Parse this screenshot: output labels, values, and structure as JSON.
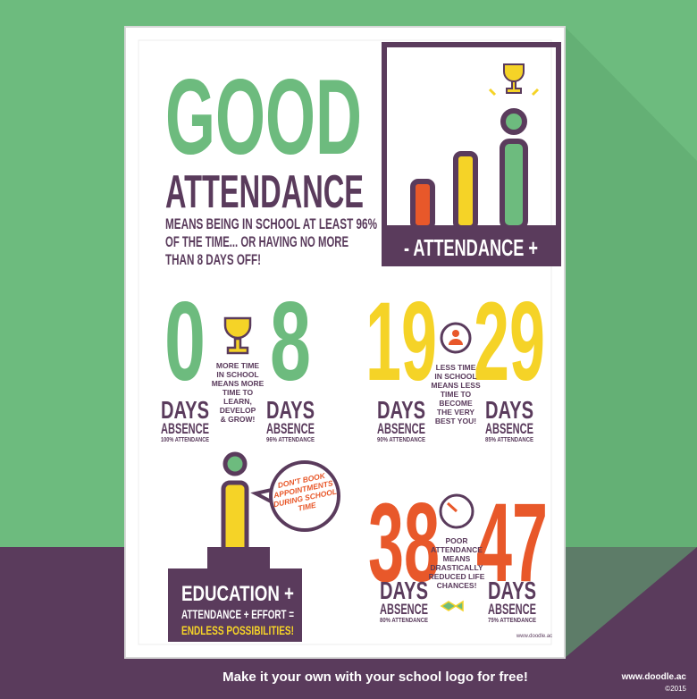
{
  "poster": {
    "headline": "GOOD",
    "subheadline": "ATTENDANCE",
    "description": [
      "MEANS BEING IN SCHOOL AT LEAST 96%",
      "OF THE TIME... OR HAVING NO MORE",
      "THAN 8 DAYS OFF!"
    ],
    "badge": "- ATTENDANCE +",
    "stats": [
      {
        "number": 0,
        "days": "DAYS",
        "absence": "ABSENCE",
        "attendance": "100% ATTENDANCE"
      },
      {
        "number": 8,
        "days": "DAYS",
        "absence": "ABSENCE",
        "attendance": "96% ATTENDANCE"
      },
      {
        "number": 19,
        "days": "DAYS",
        "absence": "ABSENCE",
        "attendance": "90% ATTENDANCE"
      },
      {
        "number": 29,
        "days": "DAYS",
        "absence": "ABSENCE",
        "attendance": "85% ATTENDANCE"
      },
      {
        "number": 38,
        "days": "DAYS",
        "absence": "ABSENCE",
        "attendance": "80% ATTENDANCE"
      },
      {
        "number": 47,
        "days": "DAYS",
        "absence": "ABSENCE",
        "attendance": "75% ATTENDANCE"
      }
    ],
    "notes": [
      [
        "MORE TIME",
        "IN SCHOOL",
        "MEANS MORE",
        "TIME TO",
        "LEARN,",
        "DEVELOP",
        "& GROW!"
      ],
      [
        "LESS TIME",
        "IN SCHOOL",
        "MEANS LESS",
        "TIME TO",
        "BECOME",
        "THE VERY",
        "BEST YOU!"
      ],
      [
        "POOR",
        "ATTENDANCE",
        "MEANS",
        "DRASTICALLY",
        "REDUCED LIFE",
        "CHANCES!"
      ]
    ],
    "speech": [
      "DON'T BOOK",
      "APPOINTMENTS",
      "DURING SCHOOL",
      "TIME"
    ],
    "equation": {
      "line1": "EDUCATION +",
      "line2": "ATTENDANCE + EFFORT =",
      "line3": "ENDLESS POSSIBILITIES!"
    },
    "credit": "www.doodle.ac"
  },
  "footer": {
    "tagline": "Make it your own with your school logo for free!",
    "site": "www.doodle.ac",
    "copyright": "©2015"
  }
}
